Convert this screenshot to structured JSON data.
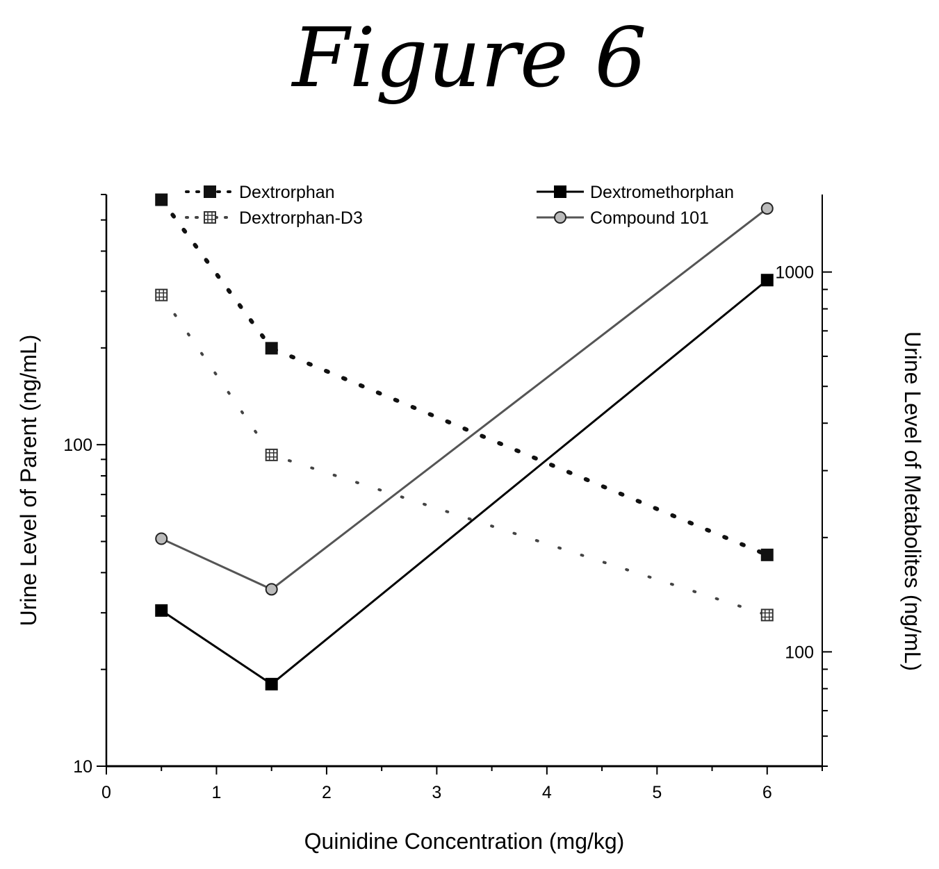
{
  "figure_title": "Figure 6",
  "chart_data": {
    "type": "line",
    "title": "",
    "xlabel": "Quinidine Concentration (mg/kg)",
    "ylabel_left": "Urine Level of Parent (ng/mL)",
    "ylabel_right": "Urine Level of Metabolites (ng/mL)",
    "xlim": [
      0,
      6.5
    ],
    "xticks": [
      0,
      1,
      2,
      3,
      4,
      5,
      6
    ],
    "ylim_left": [
      10,
      600
    ],
    "ylim_right": [
      50,
      1600
    ],
    "yscale_left": "log",
    "yscale_right": "log",
    "yticks_left": [
      10,
      100
    ],
    "yticks_right": [
      100,
      1000
    ],
    "grid": false,
    "legend": "top",
    "series": [
      {
        "name": "Dextrorphan",
        "axis": "right",
        "style": "dotted",
        "marker": "square",
        "x": [
          0.5,
          1.5,
          6
        ],
        "y": [
          1550,
          630,
          180
        ]
      },
      {
        "name": "Dextrorphan-D3",
        "axis": "right",
        "style": "sparse-dotted",
        "marker": "square-hatched",
        "x": [
          0.5,
          1.5,
          6
        ],
        "y": [
          870,
          330,
          125
        ]
      },
      {
        "name": "Dextromethorphan",
        "axis": "left",
        "style": "solid",
        "marker": "square",
        "x": [
          0.5,
          1.5,
          6
        ],
        "y": [
          30.5,
          18,
          325
        ]
      },
      {
        "name": "Compound 101",
        "axis": "left",
        "style": "grey",
        "marker": "circle",
        "x": [
          0.5,
          1.5,
          6
        ],
        "y": [
          51,
          35.5,
          543
        ]
      }
    ]
  }
}
